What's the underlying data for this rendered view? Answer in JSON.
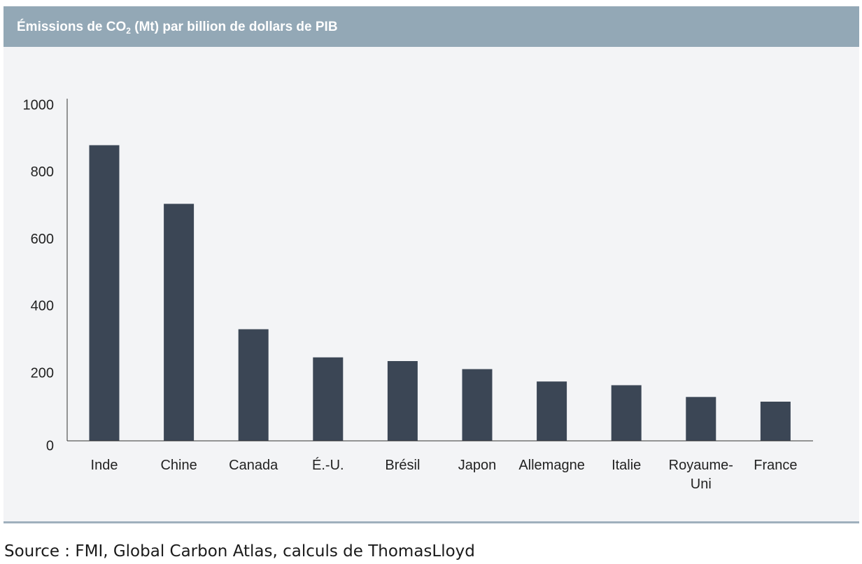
{
  "header": {
    "title_prefix": "Émissions de CO",
    "title_sub": "2",
    "title_suffix": " (Mt) par billion de dollars de PIB"
  },
  "footer": {
    "source": "Source : FMI, Global Carbon Atlas, calculs de ThomasLloyd"
  },
  "colors": {
    "bar": "#3b4655",
    "header": "#93a8b6",
    "panel": "#f3f4f6",
    "axis": "#333333"
  },
  "chart_data": {
    "type": "bar",
    "title": "Émissions de CO2 (Mt) par billion de dollars de PIB",
    "categories": [
      "Inde",
      "Chine",
      "Canada",
      "É.-U.",
      "Brésil",
      "Japon",
      "Allemagne",
      "Italie",
      "Royaume-Uni",
      "France"
    ],
    "category_lines": [
      [
        "Inde"
      ],
      [
        "Chine"
      ],
      [
        "Canada"
      ],
      [
        "É.-U."
      ],
      [
        "Brésil"
      ],
      [
        "Japon"
      ],
      [
        "Allemagne"
      ],
      [
        "Italie"
      ],
      [
        "Royaume-",
        "Uni"
      ],
      [
        "France"
      ]
    ],
    "values": [
      882,
      707,
      333,
      249,
      238,
      214,
      177,
      166,
      131,
      117
    ],
    "ylim": [
      0,
      1000
    ],
    "yticks": [
      0,
      200,
      400,
      600,
      800,
      1000
    ],
    "xlabel": "",
    "ylabel": "",
    "grid": false,
    "legend": "none"
  }
}
